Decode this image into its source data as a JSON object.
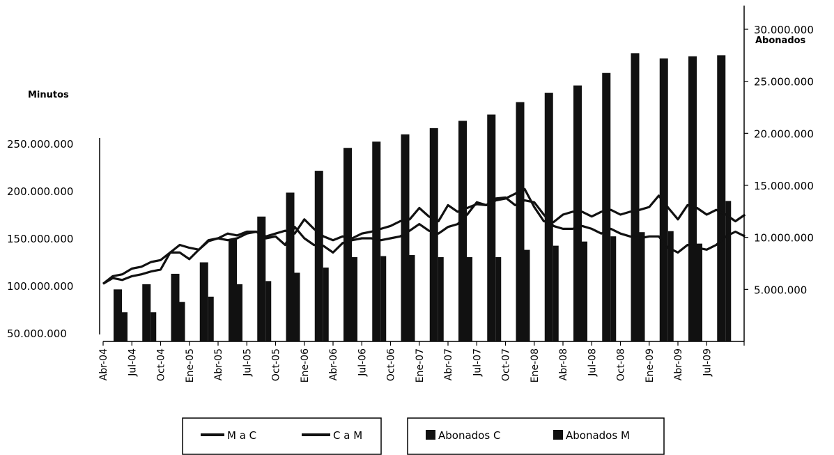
{
  "chart_data": {
    "type": "bar",
    "left_axis_title": "Minutos",
    "right_axis_title": "Abonados",
    "x_tick_labels": [
      "Abr-04",
      "Jul-04",
      "Oct-04",
      "Ene-05",
      "Abr-05",
      "Jul-05",
      "Oct-05",
      "Ene-06",
      "Abr-06",
      "Jul-06",
      "Oct-06",
      "Ene-07",
      "Abr-07",
      "Jul-07",
      "Oct-07",
      "Ene-08",
      "Abr-08",
      "Jul-08",
      "Oct-08",
      "Ene-09",
      "Abr-09",
      "Jul-09"
    ],
    "y_left": {
      "ticks": [
        "50.000.000",
        "100.000.000",
        "150.000.000",
        "200.000.000",
        "250.000.000"
      ],
      "range": [
        50000000,
        250000000
      ]
    },
    "y_right": {
      "ticks": [
        "5.000.000",
        "10.000.000",
        "15.000.000",
        "20.000.000",
        "25.000.000",
        "30.000.000"
      ],
      "range": [
        0,
        30000000
      ]
    },
    "categories": [
      "Jun-04",
      "Sep-04",
      "Dic-04",
      "Mar-05",
      "Jun-05",
      "Sep-05",
      "Dic-05",
      "Mar-06",
      "Jun-06",
      "Sep-06",
      "Dic-06",
      "Mar-07",
      "Jun-07",
      "Sep-07",
      "Dic-07",
      "Mar-08",
      "Jun-08",
      "Sep-08",
      "Dic-08",
      "Mar-09",
      "Jun-09",
      "Sep-09"
    ],
    "bar_series": [
      {
        "name": "Abonados C",
        "axis": "right",
        "color": "#111111",
        "values": [
          5000000,
          5500000,
          6500000,
          7600000,
          9800000,
          12000000,
          14300000,
          16400000,
          18600000,
          19200000,
          19900000,
          20500000,
          21200000,
          21800000,
          23000000,
          23900000,
          24600000,
          25800000,
          27700000,
          27200000,
          27400000,
          27500000
        ]
      },
      {
        "name": "Abonados M",
        "axis": "right",
        "color": "#111111",
        "values": [
          2800000,
          2800000,
          3800000,
          4300000,
          5500000,
          5800000,
          6600000,
          7100000,
          8100000,
          8200000,
          8300000,
          8100000,
          8100000,
          8100000,
          8800000,
          9200000,
          9600000,
          10100000,
          10500000,
          10600000,
          9400000,
          13500000
        ]
      }
    ],
    "x_points": [
      "Abr-04",
      "May-04",
      "Jun-04",
      "Jul-04",
      "Ago-04",
      "Sep-04",
      "Oct-04",
      "Nov-04",
      "Dic-04",
      "Ene-05",
      "Feb-05",
      "Mar-05",
      "Abr-05",
      "May-05",
      "Jun-05",
      "Jul-05",
      "Ago-05",
      "Sep-05",
      "Oct-05",
      "Nov-05",
      "Dic-05",
      "Ene-06",
      "Feb-06",
      "Mar-06",
      "Abr-06",
      "May-06",
      "Jun-06",
      "Jul-06",
      "Ago-06",
      "Sep-06",
      "Oct-06",
      "Nov-06",
      "Dic-06",
      "Ene-07",
      "Feb-07",
      "Mar-07",
      "Abr-07",
      "May-07",
      "Jun-07",
      "Jul-07",
      "Ago-07",
      "Sep-07",
      "Oct-07",
      "Nov-07",
      "Dic-07",
      "Ene-08",
      "Feb-08",
      "Mar-08",
      "Abr-08",
      "May-08",
      "Jun-08",
      "Jul-08",
      "Ago-08",
      "Sep-08",
      "Oct-08",
      "Nov-08",
      "Dic-08",
      "Ene-09",
      "Feb-09",
      "Mar-09",
      "Abr-09",
      "May-09",
      "Jun-09",
      "Jul-09",
      "Ago-09",
      "Sep-09",
      "Oct-09",
      "Nov-09"
    ],
    "line_series": [
      {
        "name": "M a C",
        "axis": "left",
        "color": "#111111",
        "values": [
          102000000,
          108000000,
          106000000,
          110000000,
          112000000,
          115000000,
          117000000,
          135000000,
          135000000,
          128000000,
          138000000,
          148000000,
          150000000,
          148000000,
          150000000,
          155000000,
          157000000,
          150000000,
          152000000,
          143000000,
          162000000,
          150000000,
          143000000,
          142000000,
          135000000,
          145000000,
          148000000,
          150000000,
          150000000,
          148000000,
          150000000,
          152000000,
          158000000,
          165000000,
          158000000,
          155000000,
          162000000,
          165000000,
          175000000,
          188000000,
          185000000,
          192000000,
          193000000,
          185000000,
          190000000,
          188000000,
          175000000,
          163000000,
          160000000,
          160000000,
          163000000,
          160000000,
          155000000,
          160000000,
          155000000,
          152000000,
          150000000,
          152000000,
          152000000,
          140000000,
          135000000,
          143000000,
          140000000,
          138000000,
          143000000,
          152000000,
          157000000,
          152000000
        ]
      },
      {
        "name": "C a M",
        "axis": "left",
        "color": "#111111",
        "values": [
          102000000,
          110000000,
          112000000,
          118000000,
          120000000,
          125000000,
          127000000,
          135000000,
          143000000,
          140000000,
          138000000,
          147000000,
          150000000,
          155000000,
          153000000,
          157000000,
          157000000,
          152000000,
          155000000,
          158000000,
          155000000,
          170000000,
          160000000,
          152000000,
          148000000,
          152000000,
          150000000,
          155000000,
          157000000,
          160000000,
          163000000,
          168000000,
          170000000,
          182000000,
          173000000,
          168000000,
          185000000,
          178000000,
          182000000,
          186000000,
          185000000,
          190000000,
          192000000,
          197000000,
          202000000,
          183000000,
          168000000,
          167000000,
          175000000,
          178000000,
          178000000,
          173000000,
          178000000,
          180000000,
          175000000,
          178000000,
          180000000,
          183000000,
          195000000,
          182000000,
          170000000,
          185000000,
          182000000,
          175000000,
          180000000,
          175000000,
          168000000,
          175000000
        ]
      }
    ],
    "legend": {
      "lines": [
        {
          "label": "M a C"
        },
        {
          "label": "C a M"
        }
      ],
      "bars": [
        {
          "label": "Abonados C"
        },
        {
          "label": "Abonados M"
        }
      ]
    }
  }
}
